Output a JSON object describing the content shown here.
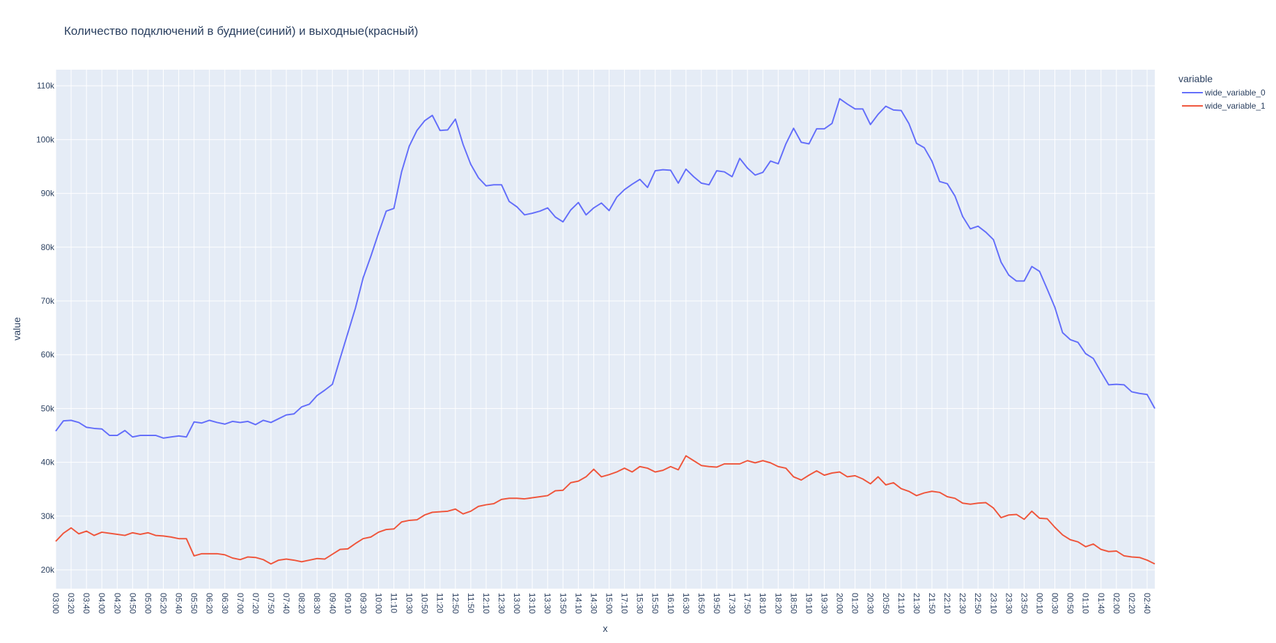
{
  "chart_data": {
    "type": "line",
    "title": "Количество подключений в будние(синий) и выходные(красный)",
    "xlabel": "x",
    "ylabel": "value",
    "legend_title": "variable",
    "legend_position": "top-right",
    "grid": true,
    "ylim": [
      16500,
      113000
    ],
    "yticks": [
      20000,
      30000,
      40000,
      50000,
      60000,
      70000,
      80000,
      90000,
      100000,
      110000
    ],
    "ytick_labels": [
      "20k",
      "30k",
      "40k",
      "50k",
      "60k",
      "70k",
      "80k",
      "90k",
      "100k",
      "110k"
    ],
    "xtick_labels": [
      "03:00",
      "03:20",
      "03:40",
      "04:00",
      "04:20",
      "04:50",
      "05:00",
      "05:20",
      "05:40",
      "05:50",
      "06:20",
      "06:30",
      "07:00",
      "07:20",
      "07:50",
      "07:40",
      "08:20",
      "08:30",
      "09:40",
      "09:10",
      "09:30",
      "10:00",
      "11:10",
      "10:30",
      "10:50",
      "11:20",
      "12:50",
      "11:50",
      "12:10",
      "12:30",
      "13:00",
      "13:10",
      "13:30",
      "13:50",
      "14:10",
      "14:30",
      "15:00",
      "17:10",
      "15:30",
      "15:50",
      "16:10",
      "16:30",
      "16:50",
      "19:50",
      "17:30",
      "17:50",
      "18:10",
      "18:20",
      "18:50",
      "19:10",
      "19:30",
      "20:00",
      "01:20",
      "20:30",
      "20:50",
      "21:10",
      "21:30",
      "21:50",
      "22:10",
      "22:30",
      "22:50",
      "23:10",
      "23:30",
      "23:50",
      "00:10",
      "00:30",
      "00:50",
      "01:10",
      "01:40",
      "02:00",
      "02:20",
      "02:40"
    ],
    "series": [
      {
        "name": "wide_variable_0",
        "color": "#636efa",
        "values": [
          45800,
          47700,
          47800,
          47400,
          46500,
          46300,
          46200,
          45000,
          45000,
          45900,
          44700,
          45000,
          45000,
          45000,
          44500,
          44700,
          44900,
          44700,
          47500,
          47300,
          47800,
          47400,
          47100,
          47600,
          47400,
          47600,
          47000,
          47800,
          47400,
          48100,
          48800,
          49000,
          50300,
          50800,
          52400,
          53400,
          54500,
          59300,
          64000,
          68700,
          74300,
          78300,
          82600,
          86700,
          87200,
          94000,
          98800,
          101700,
          103500,
          104500,
          101700,
          101800,
          103800,
          99100,
          95400,
          92900,
          91400,
          91600,
          91600,
          88500,
          87500,
          86000,
          86300,
          86700,
          87300,
          85600,
          84700,
          86900,
          88300,
          86000,
          87300,
          88200,
          86800,
          89300,
          90700,
          91700,
          92600,
          91100,
          94200,
          94400,
          94300,
          91900,
          94500,
          93100,
          91900,
          91600,
          94200,
          94000,
          93100,
          96500,
          94700,
          93400,
          93900,
          96000,
          95500,
          99200,
          102100,
          99500,
          99200,
          102000,
          102000,
          103000,
          107600,
          106600,
          105700,
          105700,
          102800,
          104700,
          106200,
          105500,
          105400,
          103000,
          99300,
          98500,
          96000,
          92200,
          91800,
          89500,
          85700,
          83400,
          83900,
          82800,
          81400,
          77200,
          74800,
          73700,
          73700,
          76400,
          75500,
          72200,
          68800,
          64100,
          62800,
          62300,
          60200,
          59300,
          56800,
          54400,
          54500,
          54400,
          53100,
          52800,
          52600,
          50000
        ]
      },
      {
        "name": "wide_variable_1",
        "color": "#ef553b",
        "values": [
          25300,
          26800,
          27800,
          26700,
          27200,
          26400,
          27000,
          26800,
          26600,
          26400,
          26900,
          26600,
          26900,
          26400,
          26300,
          26100,
          25800,
          25800,
          22600,
          23000,
          23000,
          23000,
          22800,
          22200,
          21900,
          22400,
          22300,
          21900,
          21100,
          21800,
          22000,
          21800,
          21500,
          21800,
          22100,
          22000,
          22900,
          23800,
          23900,
          24900,
          25800,
          26100,
          27000,
          27500,
          27600,
          28900,
          29200,
          29300,
          30200,
          30700,
          30800,
          30900,
          31300,
          30400,
          30900,
          31800,
          32100,
          32300,
          33100,
          33300,
          33300,
          33200,
          33400,
          33600,
          33800,
          34700,
          34800,
          36200,
          36500,
          37300,
          38700,
          37300,
          37700,
          38200,
          38900,
          38200,
          39200,
          38900,
          38200,
          38500,
          39200,
          38600,
          41200,
          40300,
          39400,
          39200,
          39100,
          39700,
          39700,
          39700,
          40300,
          39900,
          40300,
          39900,
          39200,
          38900,
          37300,
          36700,
          37600,
          38400,
          37600,
          38000,
          38200,
          37300,
          37500,
          36900,
          36000,
          37300,
          35800,
          36200,
          35100,
          34600,
          33800,
          34300,
          34600,
          34400,
          33600,
          33300,
          32400,
          32200,
          32400,
          32500,
          31500,
          29700,
          30200,
          30300,
          29400,
          30900,
          29600,
          29500,
          27900,
          26500,
          25600,
          25200,
          24300,
          24800,
          23800,
          23400,
          23500,
          22600,
          22400,
          22300,
          21800,
          21100
        ]
      }
    ]
  }
}
